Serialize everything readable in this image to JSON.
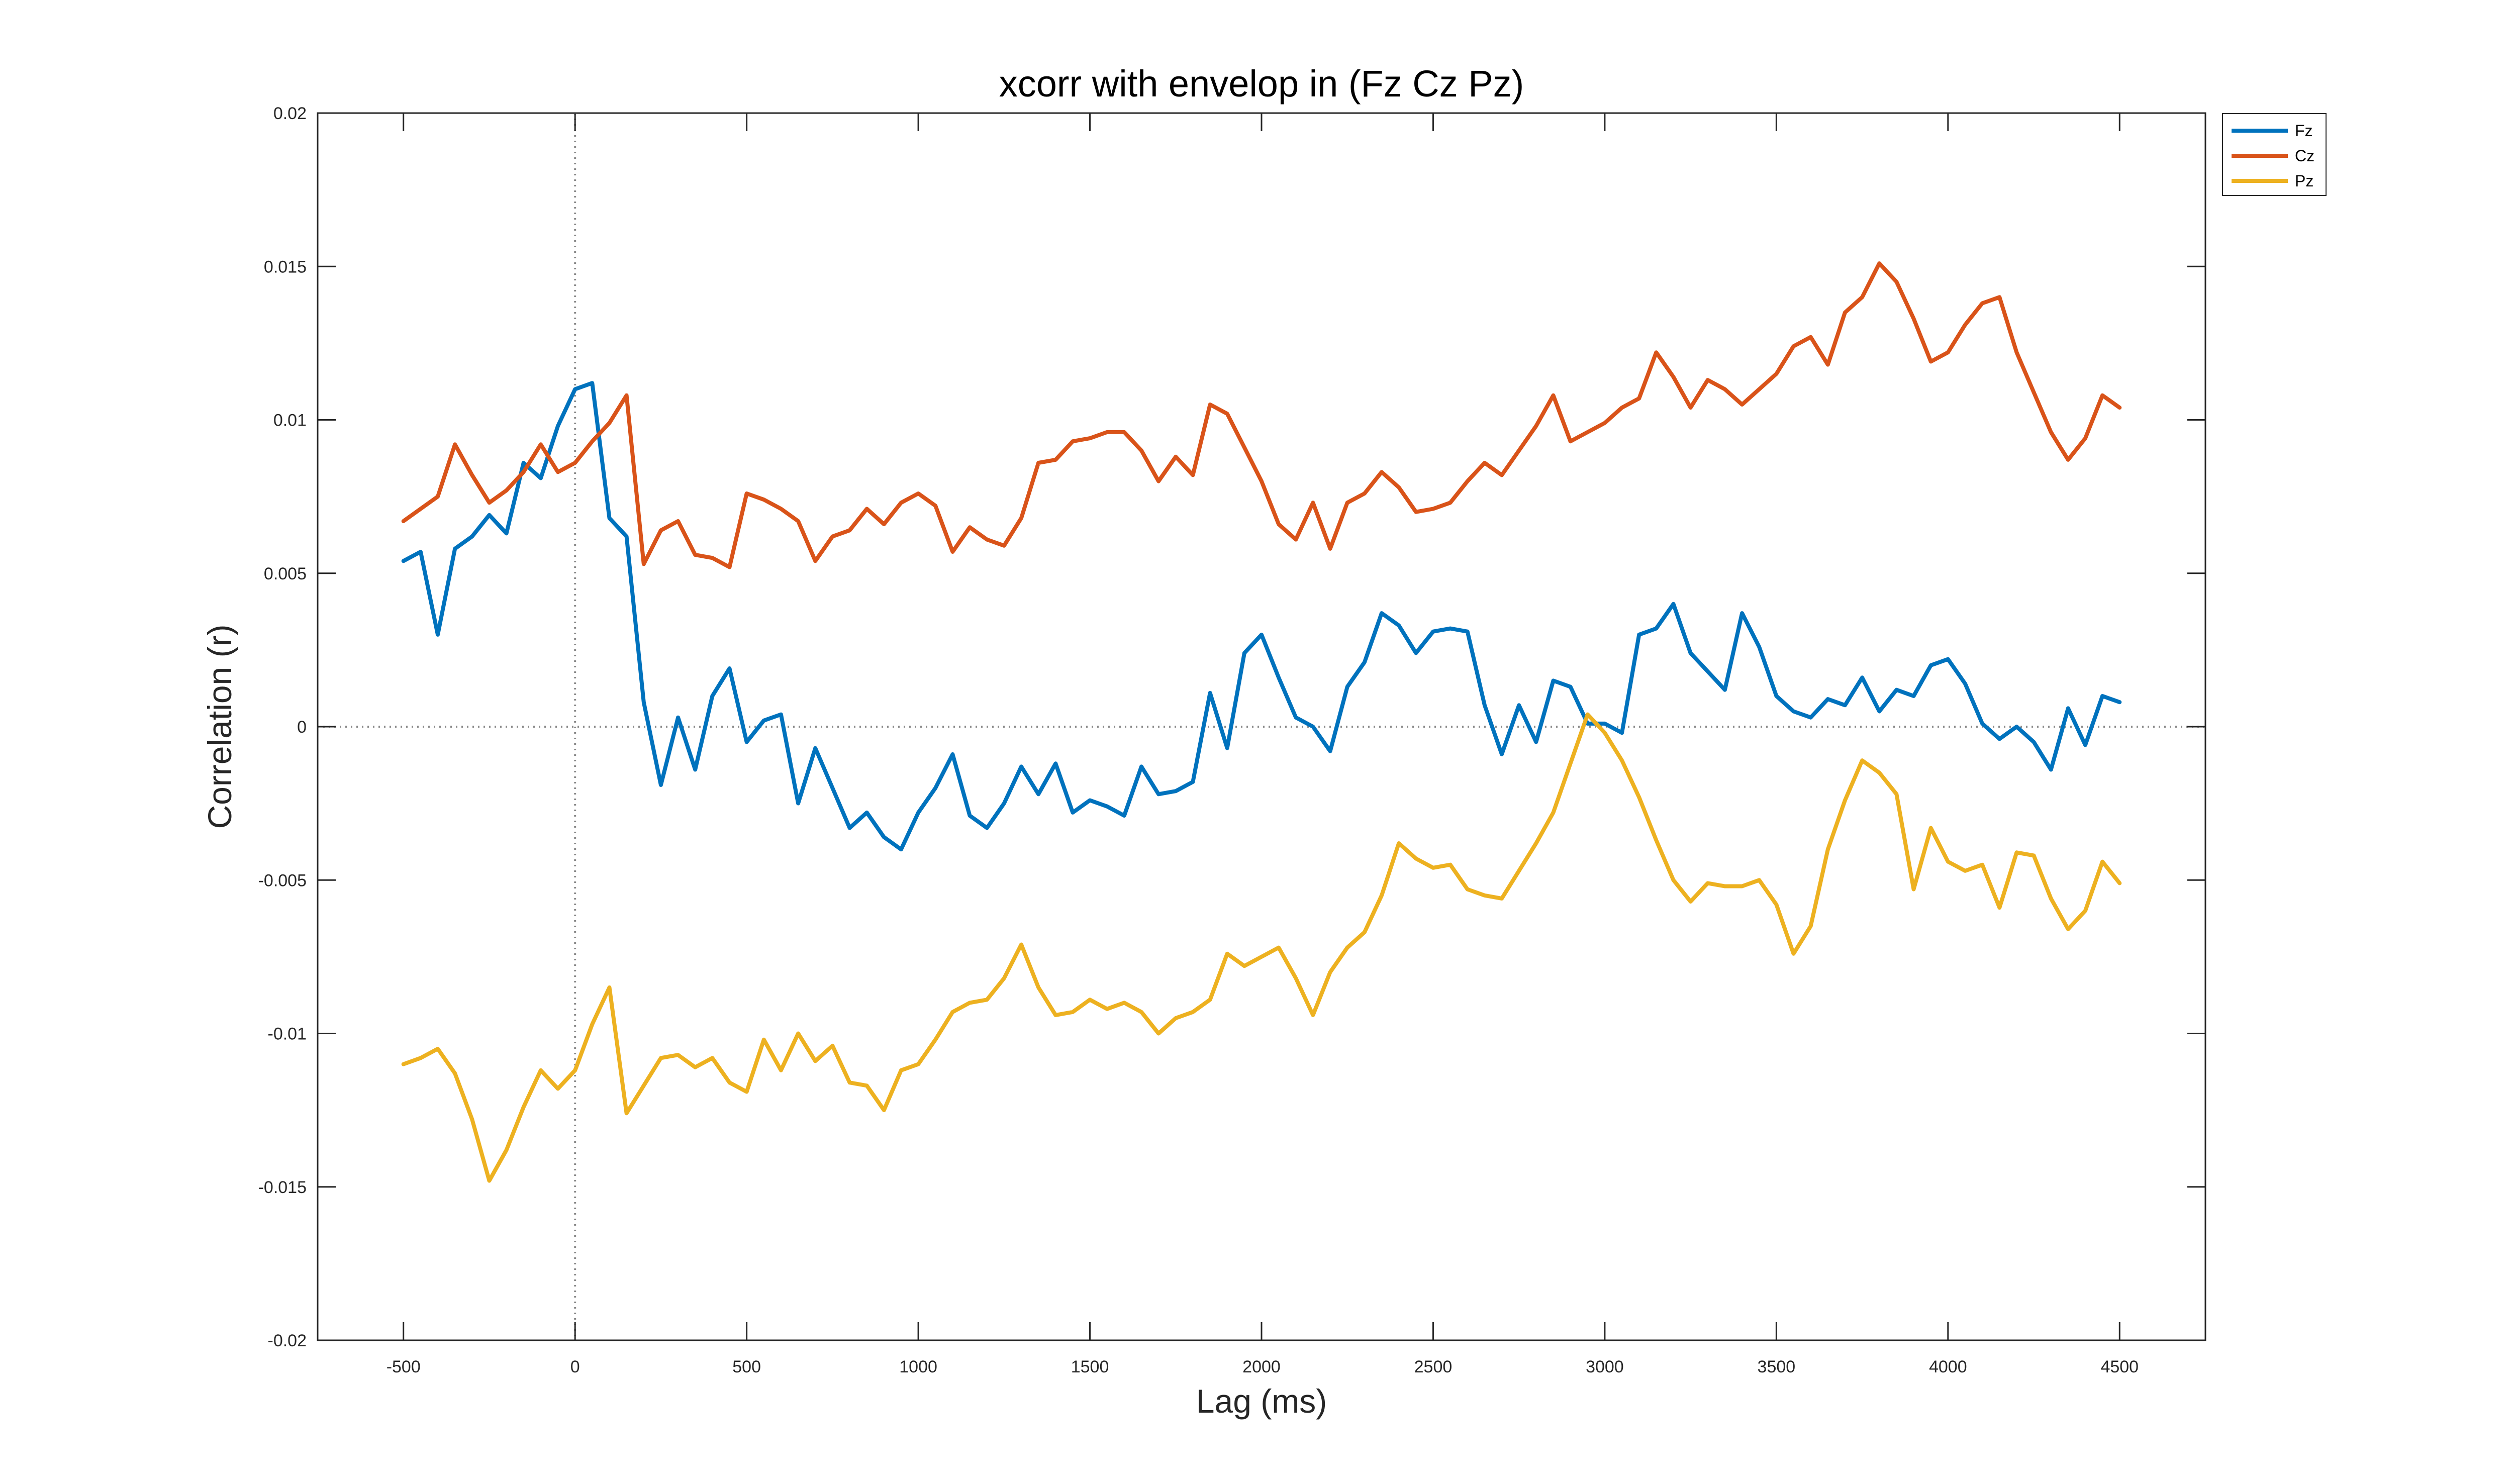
{
  "chart_data": {
    "type": "line",
    "title": "xcorr with envelop in (Fz Cz Pz)",
    "xlabel": "Lag (ms)",
    "ylabel": "Correlation (r)",
    "xlim": [
      -750,
      4750
    ],
    "ylim": [
      -0.02,
      0.02
    ],
    "x_ticks": [
      -500,
      0,
      500,
      1000,
      1500,
      2000,
      2500,
      3000,
      3500,
      4000,
      4500
    ],
    "x_tick_labels": [
      "-500",
      "0",
      "500",
      "1000",
      "1500",
      "2000",
      "2500",
      "3000",
      "3500",
      "4000",
      "4500"
    ],
    "y_ticks": [
      -0.02,
      -0.015,
      -0.01,
      -0.005,
      0,
      0.005,
      0.01,
      0.015,
      0.02
    ],
    "y_tick_labels": [
      "-0.02",
      "-0.015",
      "-0.01",
      "-0.005",
      "0",
      "0.005",
      "0.01",
      "0.015",
      "0.02"
    ],
    "grid": false,
    "reference_lines": {
      "x": 0,
      "y": 0,
      "style": "dotted"
    },
    "legend_position": "outside-top-right",
    "x": [
      -500,
      -450,
      -400,
      -350,
      -300,
      -250,
      -200,
      -150,
      -100,
      -50,
      0,
      50,
      100,
      150,
      200,
      250,
      300,
      350,
      400,
      450,
      500,
      550,
      600,
      650,
      700,
      750,
      800,
      850,
      900,
      950,
      1000,
      1050,
      1100,
      1150,
      1200,
      1250,
      1300,
      1350,
      1400,
      1450,
      1500,
      1550,
      1600,
      1650,
      1700,
      1750,
      1800,
      1850,
      1900,
      1950,
      2000,
      2050,
      2100,
      2150,
      2200,
      2250,
      2300,
      2350,
      2400,
      2450,
      2500,
      2550,
      2600,
      2650,
      2700,
      2750,
      2800,
      2850,
      2900,
      2950,
      3000,
      3050,
      3100,
      3150,
      3200,
      3250,
      3300,
      3350,
      3400,
      3450,
      3500,
      3550,
      3600,
      3650,
      3700,
      3750,
      3800,
      3850,
      3900,
      3950,
      4000,
      4050,
      4100,
      4150,
      4200,
      4250,
      4300,
      4350,
      4400,
      4450,
      4500
    ],
    "series": [
      {
        "name": "Fz",
        "color": "#0072BD",
        "values": [
          0.0054,
          0.0057,
          0.003,
          0.0058,
          0.0062,
          0.0069,
          0.0063,
          0.0086,
          0.0081,
          0.0098,
          0.011,
          0.0112,
          0.0068,
          0.0062,
          0.0008,
          -0.0019,
          0.0003,
          -0.0014,
          0.001,
          0.0019,
          -0.0005,
          0.0002,
          0.0004,
          -0.0025,
          -0.0007,
          -0.002,
          -0.0033,
          -0.0028,
          -0.0036,
          -0.004,
          -0.0028,
          -0.002,
          -0.0009,
          -0.0029,
          -0.0033,
          -0.0025,
          -0.0013,
          -0.0022,
          -0.0012,
          -0.0028,
          -0.0024,
          -0.0026,
          -0.0029,
          -0.0013,
          -0.0022,
          -0.0021,
          -0.0018,
          0.0011,
          -0.0007,
          0.0024,
          0.003,
          0.0016,
          0.0003,
          0.0,
          -0.0008,
          0.0013,
          0.0021,
          0.0037,
          0.0033,
          0.0024,
          0.0031,
          0.0032,
          0.0031,
          0.0007,
          -0.0009,
          0.0007,
          -0.0005,
          0.0015,
          0.0013,
          0.0001,
          0.0001,
          -0.0002,
          0.003,
          0.0032,
          0.004,
          0.0024,
          0.0018,
          0.0012,
          0.0037,
          0.0026,
          0.001,
          0.0005,
          0.0003,
          0.0009,
          0.0007,
          0.0016,
          0.0005,
          0.0012,
          0.001,
          0.002,
          0.0022,
          0.0014,
          0.0001,
          -0.0004,
          0.0,
          -0.0005,
          -0.0014,
          0.0006,
          -0.0006,
          0.001,
          0.0008
        ]
      },
      {
        "name": "Cz",
        "color": "#D95319",
        "values": [
          0.0067,
          0.0071,
          0.0075,
          0.0092,
          0.0082,
          0.0073,
          0.0077,
          0.0083,
          0.0092,
          0.0083,
          0.0086,
          0.0093,
          0.0099,
          0.0108,
          0.0053,
          0.0064,
          0.0067,
          0.0056,
          0.0055,
          0.0052,
          0.0076,
          0.0074,
          0.0071,
          0.0067,
          0.0054,
          0.0062,
          0.0064,
          0.0071,
          0.0066,
          0.0073,
          0.0076,
          0.0072,
          0.0057,
          0.0065,
          0.0061,
          0.0059,
          0.0068,
          0.0086,
          0.0087,
          0.0093,
          0.0094,
          0.0096,
          0.0096,
          0.009,
          0.008,
          0.0088,
          0.0082,
          0.0105,
          0.0102,
          0.0091,
          0.008,
          0.0066,
          0.0061,
          0.0073,
          0.0058,
          0.0073,
          0.0076,
          0.0083,
          0.0078,
          0.007,
          0.0071,
          0.0073,
          0.008,
          0.0086,
          0.0082,
          0.009,
          0.0098,
          0.0108,
          0.0093,
          0.0096,
          0.0099,
          0.0104,
          0.0107,
          0.0122,
          0.0114,
          0.0104,
          0.0113,
          0.011,
          0.0105,
          0.011,
          0.0115,
          0.0124,
          0.0127,
          0.0118,
          0.0135,
          0.014,
          0.0151,
          0.0145,
          0.0133,
          0.0119,
          0.0122,
          0.0131,
          0.0138,
          0.014,
          0.0122,
          0.0109,
          0.0096,
          0.0087,
          0.0094,
          0.0108,
          0.0104
        ]
      },
      {
        "name": "Pz",
        "color": "#EDB120",
        "values": [
          -0.011,
          -0.0108,
          -0.0105,
          -0.0113,
          -0.0128,
          -0.0148,
          -0.0138,
          -0.0124,
          -0.0112,
          -0.0118,
          -0.0112,
          -0.0097,
          -0.0085,
          -0.0126,
          -0.0117,
          -0.0108,
          -0.0107,
          -0.0111,
          -0.0108,
          -0.0116,
          -0.0119,
          -0.0102,
          -0.0112,
          -0.01,
          -0.0109,
          -0.0104,
          -0.0116,
          -0.0117,
          -0.0125,
          -0.0112,
          -0.011,
          -0.0102,
          -0.0093,
          -0.009,
          -0.0089,
          -0.0082,
          -0.0071,
          -0.0085,
          -0.0094,
          -0.0093,
          -0.0089,
          -0.0092,
          -0.009,
          -0.0093,
          -0.01,
          -0.0095,
          -0.0093,
          -0.0089,
          -0.0074,
          -0.0078,
          -0.0075,
          -0.0072,
          -0.0082,
          -0.0094,
          -0.008,
          -0.0072,
          -0.0067,
          -0.0055,
          -0.0038,
          -0.0043,
          -0.0046,
          -0.0045,
          -0.0053,
          -0.0055,
          -0.0056,
          -0.0047,
          -0.0038,
          -0.0028,
          -0.0012,
          0.0004,
          -0.0002,
          -0.0011,
          -0.0023,
          -0.0037,
          -0.005,
          -0.0057,
          -0.0051,
          -0.0052,
          -0.0052,
          -0.005,
          -0.0058,
          -0.0074,
          -0.0065,
          -0.004,
          -0.0024,
          -0.0011,
          -0.0015,
          -0.0022,
          -0.0053,
          -0.0033,
          -0.0044,
          -0.0047,
          -0.0045,
          -0.0059,
          -0.0041,
          -0.0042,
          -0.0056,
          -0.0066,
          -0.006,
          -0.0044,
          -0.0051
        ]
      }
    ]
  }
}
